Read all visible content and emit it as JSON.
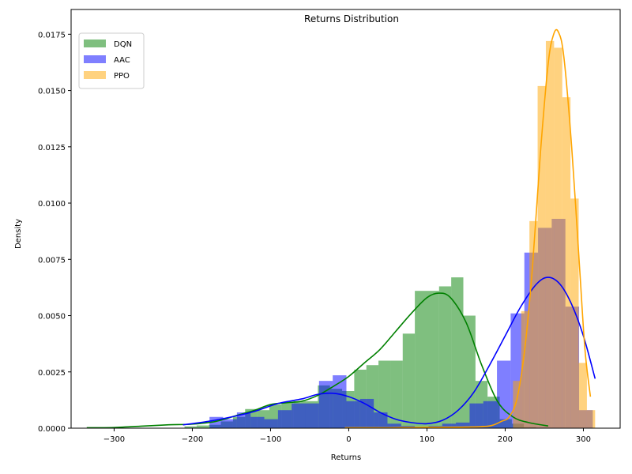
{
  "chart_data": {
    "type": "histogram-kde",
    "title": "Returns Distribution",
    "xlabel": "Returns",
    "ylabel": "Density",
    "xlim": [
      -355,
      347
    ],
    "ylim": [
      0,
      0.0186
    ],
    "xticks": [
      -300,
      -200,
      -100,
      0,
      100,
      200,
      300
    ],
    "yticks": [
      0.0,
      0.0025,
      0.005,
      0.0075,
      0.01,
      0.0125,
      0.015,
      0.0175
    ],
    "ytick_labels": [
      "0.0000",
      "0.0025",
      "0.0050",
      "0.0075",
      "0.0100",
      "0.0125",
      "0.0150",
      "0.0175"
    ],
    "legend": {
      "position": "top-left"
    },
    "series": [
      {
        "name": "DQN",
        "color": "#008000",
        "hist_alpha": 0.5,
        "bin_width": 15.5,
        "bins": [
          [
            -210,
            8e-05
          ],
          [
            -194.5,
            0.00012
          ],
          [
            -179,
            0.00015
          ],
          [
            -163.5,
            0.0003
          ],
          [
            -148,
            0.0005
          ],
          [
            -132.5,
            0.00085
          ],
          [
            -117,
            0.0008
          ],
          [
            -101.5,
            0.00105
          ],
          [
            -86,
            0.00112
          ],
          [
            -70.5,
            0.0012
          ],
          [
            -55,
            0.0012
          ],
          [
            -39.5,
            0.0019
          ],
          [
            -24,
            0.00175
          ],
          [
            -8.5,
            0.00165
          ],
          [
            7,
            0.0026
          ],
          [
            22.5,
            0.0028
          ],
          [
            38,
            0.003
          ],
          [
            53.5,
            0.003
          ],
          [
            69,
            0.0042
          ],
          [
            84.5,
            0.0061
          ],
          [
            100,
            0.0061
          ],
          [
            115.5,
            0.0063
          ],
          [
            131,
            0.0067
          ],
          [
            146.5,
            0.005
          ],
          [
            162,
            0.0021
          ],
          [
            177.5,
            0.0014
          ],
          [
            193,
            0.0004
          ],
          [
            208.5,
            0.0002
          ],
          [
            224,
            5e-05
          ]
        ],
        "kde": [
          [
            -335,
            2e-05
          ],
          [
            -300,
            3e-05
          ],
          [
            -260,
            0.0001
          ],
          [
            -230,
            0.00015
          ],
          [
            -200,
            0.00018
          ],
          [
            -170,
            0.0003
          ],
          [
            -140,
            0.0006
          ],
          [
            -120,
            0.0008
          ],
          [
            -100,
            0.00105
          ],
          [
            -80,
            0.00113
          ],
          [
            -60,
            0.0012
          ],
          [
            -40,
            0.00145
          ],
          [
            -20,
            0.00185
          ],
          [
            0,
            0.0023
          ],
          [
            20,
            0.0029
          ],
          [
            40,
            0.0035
          ],
          [
            60,
            0.0043
          ],
          [
            80,
            0.0051
          ],
          [
            100,
            0.0058
          ],
          [
            115,
            0.006
          ],
          [
            130,
            0.0058
          ],
          [
            150,
            0.0047
          ],
          [
            170,
            0.0028
          ],
          [
            190,
            0.0012
          ],
          [
            210,
            0.0005
          ],
          [
            230,
            0.00025
          ],
          [
            255,
            0.0001
          ]
        ]
      },
      {
        "name": "AAC",
        "color": "#0000ff",
        "hist_alpha": 0.5,
        "bin_width": 17.5,
        "bins": [
          [
            -178,
            0.0005
          ],
          [
            -160.5,
            0.0004
          ],
          [
            -143,
            0.0007
          ],
          [
            -125.5,
            0.0005
          ],
          [
            -108,
            0.0004
          ],
          [
            -90.5,
            0.0008
          ],
          [
            -73,
            0.0011
          ],
          [
            -55.5,
            0.0011
          ],
          [
            -38,
            0.0021
          ],
          [
            -20.5,
            0.00235
          ],
          [
            -3,
            0.0012
          ],
          [
            14.5,
            0.0013
          ],
          [
            32,
            0.0007
          ],
          [
            49.5,
            0.0002
          ],
          [
            67,
            0.0001
          ],
          [
            84.5,
            5e-05
          ],
          [
            102,
            0.0001
          ],
          [
            119.5,
            0.0002
          ],
          [
            137,
            0.00025
          ],
          [
            154.5,
            0.0011
          ],
          [
            172,
            0.0012
          ],
          [
            189.5,
            0.003
          ],
          [
            207,
            0.0051
          ],
          [
            224.5,
            0.0078
          ],
          [
            242,
            0.0089
          ],
          [
            259.5,
            0.0093
          ],
          [
            277,
            0.0054
          ],
          [
            294.5,
            0.0008
          ]
        ],
        "kde": [
          [
            -212,
            0.00015
          ],
          [
            -180,
            0.0003
          ],
          [
            -150,
            0.0005
          ],
          [
            -120,
            0.00075
          ],
          [
            -90,
            0.0011
          ],
          [
            -60,
            0.0013
          ],
          [
            -40,
            0.0015
          ],
          [
            -20,
            0.00155
          ],
          [
            0,
            0.0014
          ],
          [
            20,
            0.0011
          ],
          [
            40,
            0.0007
          ],
          [
            60,
            0.0004
          ],
          [
            80,
            0.00025
          ],
          [
            100,
            0.0002
          ],
          [
            120,
            0.00035
          ],
          [
            140,
            0.0008
          ],
          [
            160,
            0.0016
          ],
          [
            180,
            0.0028
          ],
          [
            200,
            0.0041
          ],
          [
            220,
            0.0054
          ],
          [
            240,
            0.0064
          ],
          [
            255,
            0.0067
          ],
          [
            270,
            0.0064
          ],
          [
            285,
            0.0055
          ],
          [
            300,
            0.0041
          ],
          [
            315,
            0.0022
          ]
        ]
      },
      {
        "name": "PPO",
        "color": "#ffa500",
        "hist_alpha": 0.5,
        "bin_width": 10.5,
        "bins": [
          [
            210,
            0.0021
          ],
          [
            220.5,
            0.0052
          ],
          [
            231,
            0.0092
          ],
          [
            241.5,
            0.0152
          ],
          [
            252,
            0.0172
          ],
          [
            262.5,
            0.0169
          ],
          [
            273,
            0.0147
          ],
          [
            283.5,
            0.0102
          ],
          [
            294,
            0.0029
          ],
          [
            304.5,
            0.0008
          ]
        ],
        "kde": [
          [
            -5,
            2e-05
          ],
          [
            50,
            2e-05
          ],
          [
            100,
            4e-05
          ],
          [
            150,
            5e-05
          ],
          [
            180,
            0.0001
          ],
          [
            195,
            0.0003
          ],
          [
            205,
            0.0005
          ],
          [
            215,
            0.0013
          ],
          [
            225,
            0.0035
          ],
          [
            235,
            0.0072
          ],
          [
            245,
            0.0122
          ],
          [
            255,
            0.0162
          ],
          [
            262,
            0.0175
          ],
          [
            268,
            0.0176
          ],
          [
            275,
            0.0165
          ],
          [
            285,
            0.0125
          ],
          [
            295,
            0.0072
          ],
          [
            302,
            0.0035
          ],
          [
            309,
            0.0014
          ]
        ]
      }
    ]
  }
}
